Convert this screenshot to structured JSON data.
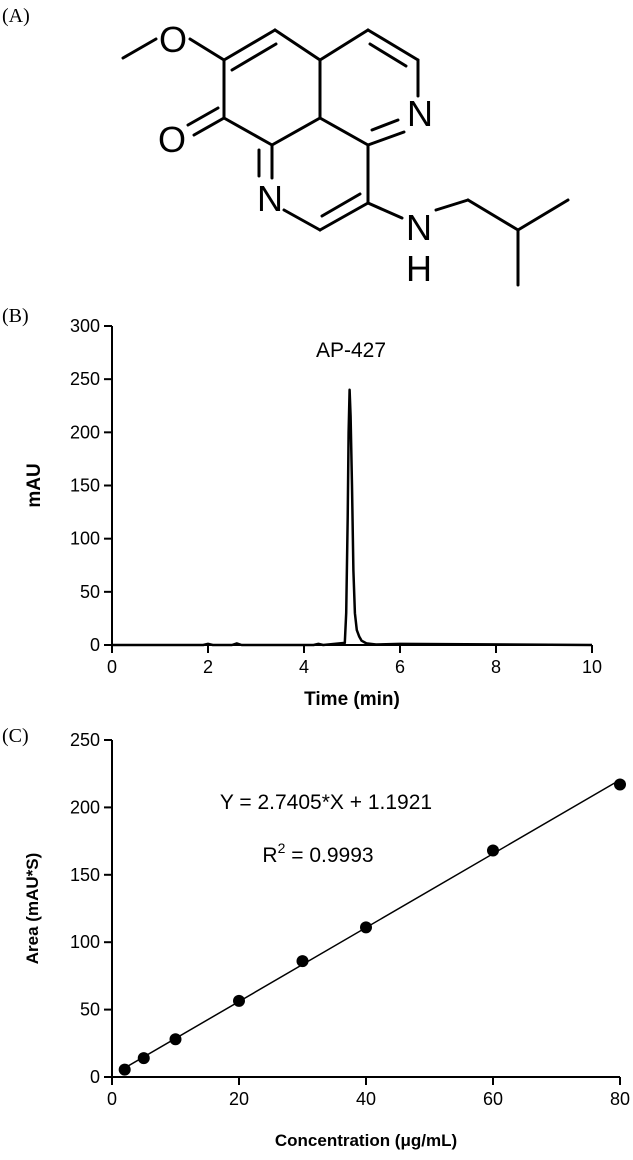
{
  "panels": {
    "a_label": "(A)",
    "b_label": "(B)",
    "c_label": "(C)"
  },
  "molecule": {
    "atoms": {
      "o_methoxy": "O",
      "o_carbonyl": "O",
      "n_ring_right": "N",
      "n_ring_left": "N",
      "n_amine": "N",
      "h_amine": "H"
    }
  },
  "chart_data": [
    {
      "type": "line",
      "title": "",
      "annotation": "AP-427",
      "xlabel": "Time (min)",
      "ylabel": "mAU",
      "xlim": [
        0,
        10
      ],
      "ylim": [
        0,
        300
      ],
      "xticks": [
        0,
        2,
        4,
        6,
        8,
        10
      ],
      "yticks": [
        0,
        50,
        100,
        150,
        200,
        250,
        300
      ],
      "grid": false,
      "series": [
        {
          "x": [
            0,
            1.9,
            2.0,
            2.1,
            2.5,
            2.6,
            2.7,
            4.2,
            4.3,
            4.4,
            4.85,
            4.88,
            4.91,
            4.93,
            4.95,
            4.97,
            5.0,
            5.03,
            5.06,
            5.1,
            5.15,
            5.2,
            5.3,
            5.5,
            6.0,
            10
          ],
          "y": [
            0,
            0,
            1,
            0,
            0,
            1.5,
            0,
            0,
            1,
            0,
            2,
            30,
            120,
            200,
            240,
            215,
            150,
            70,
            30,
            14,
            8,
            4,
            1.5,
            0.5,
            1,
            0
          ]
        }
      ]
    },
    {
      "type": "scatter",
      "title": "",
      "xlabel": "Concentration (μg/mL)",
      "ylabel": "Area (mAU*S)",
      "xlim": [
        0,
        80
      ],
      "ylim": [
        0,
        250
      ],
      "xticks": [
        0,
        20,
        40,
        60,
        80
      ],
      "yticks": [
        0,
        50,
        100,
        150,
        200,
        250
      ],
      "grid": false,
      "equation": "Y = 2.7405*X + 1.1921",
      "r2_label": "R",
      "r2_exp": "2",
      "r2_value": " = 0.9993",
      "fit": {
        "slope": 2.7405,
        "intercept": 1.1921,
        "x_range": [
          2,
          80
        ]
      },
      "series": [
        {
          "x": [
            2,
            5,
            10,
            20,
            30,
            40,
            60,
            80
          ],
          "y": [
            5.5,
            14,
            28,
            56.5,
            86,
            111,
            168,
            217
          ]
        }
      ]
    }
  ]
}
